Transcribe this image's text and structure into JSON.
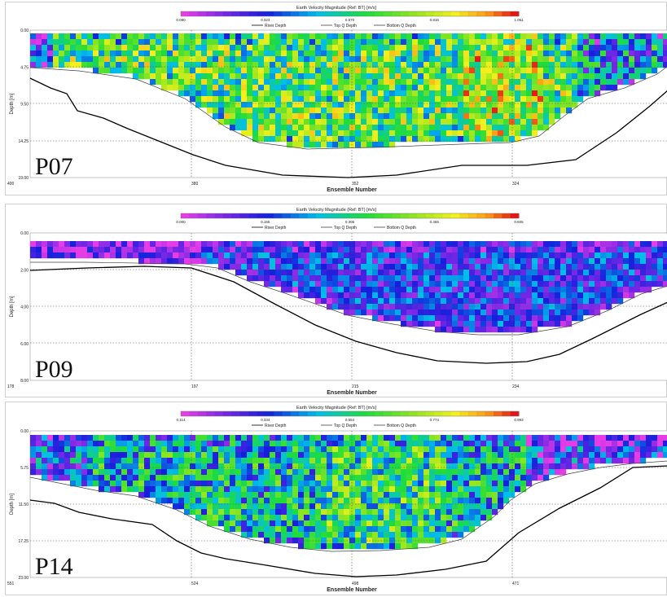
{
  "panels": [
    {
      "id": "P07",
      "panel_label": "P07",
      "legend_title": "Earth Velocity Magnitude (Ref: BT) [m/s]",
      "legend_ticks": [
        "0.080",
        "0.323",
        "0.570",
        "0.816",
        "1.061"
      ],
      "legend_min": 0.08,
      "legend_max": 1.061,
      "colormap": "legacy",
      "y_label": "Depth [m]",
      "y_ticks": [
        "0.00",
        "4.75",
        "9.50",
        "14.25",
        "19.00"
      ],
      "y_max": 19.0,
      "x_label": "Ensemble Number",
      "x_ticks": [
        "400",
        "380",
        "352",
        "324"
      ]
    },
    {
      "id": "P09",
      "panel_label": "P09",
      "legend_title": "Earth Velocity Magnitude (Ref: BT) [m/s]",
      "legend_ticks": [
        "0.000",
        "0.156",
        "0.306",
        "0.455",
        "0.605"
      ],
      "legend_min": 0.0,
      "legend_max": 0.605,
      "colormap": "legacy",
      "y_label": "Depth [m]",
      "y_ticks": [
        "0.00",
        "2.00",
        "4.00",
        "6.00",
        "8.00"
      ],
      "y_max": 8.0,
      "x_label": "Ensemble Number",
      "x_ticks": [
        "178",
        "197",
        "215",
        "234"
      ]
    },
    {
      "id": "P14",
      "panel_label": "P14",
      "legend_title": "Earth Velocity Magnitude (Ref: BT) [m/s]",
      "legend_ticks": [
        "0.114",
        "0.334",
        "0.554",
        "0.774",
        "0.993"
      ],
      "legend_min": 0.114,
      "legend_max": 0.993,
      "colormap": "legacy",
      "y_label": "Depth [m]",
      "y_ticks": [
        "0.00",
        "5.75",
        "11.50",
        "17.25",
        "23.00"
      ],
      "y_max": 23.0,
      "x_label": "Ensemble Number",
      "x_ticks": [
        "551",
        "524",
        "498",
        "471"
      ]
    }
  ],
  "legend_entries": [
    "River Depth",
    "Top Q Depth",
    "Bottom Q Depth"
  ],
  "colors": {
    "river_depth_line": "#000000",
    "q_depth_line": "#444444",
    "grid": "#555555",
    "panel_border": "#d0d0d0"
  },
  "chart_data": [
    {
      "type": "heatmap",
      "title": "Earth Velocity Magnitude (Ref: BT) [m/s]",
      "panel_label": "P07",
      "xlabel": "Ensemble Number",
      "ylabel": "Depth [m]",
      "x_ticks": [
        400,
        380,
        352,
        324
      ],
      "y_ticks": [
        0.0,
        4.75,
        9.5,
        14.25,
        19.0
      ],
      "ylim": [
        19.0,
        0.0
      ],
      "color_range": [
        0.08,
        1.061
      ],
      "legend": [
        "River Depth",
        "Top Q Depth",
        "Bottom Q Depth"
      ],
      "grid": true
    },
    {
      "type": "heatmap",
      "title": "Earth Velocity Magnitude (Ref: BT) [m/s]",
      "panel_label": "P09",
      "xlabel": "Ensemble Number",
      "ylabel": "Depth [m]",
      "x_ticks": [
        178,
        197,
        215,
        234
      ],
      "y_ticks": [
        0.0,
        2.0,
        4.0,
        6.0,
        8.0
      ],
      "ylim": [
        8.0,
        0.0
      ],
      "color_range": [
        0.0,
        0.605
      ],
      "legend": [
        "River Depth",
        "Top Q Depth",
        "Bottom Q Depth"
      ],
      "grid": true
    },
    {
      "type": "heatmap",
      "title": "Earth Velocity Magnitude (Ref: BT) [m/s]",
      "panel_label": "P14",
      "xlabel": "Ensemble Number",
      "ylabel": "Depth [m]",
      "x_ticks": [
        551,
        524,
        498,
        471
      ],
      "y_ticks": [
        0.0,
        5.75,
        11.5,
        17.25,
        23.0
      ],
      "ylim": [
        23.0,
        0.0
      ],
      "color_range": [
        0.114,
        0.993
      ],
      "legend": [
        "River Depth",
        "Top Q Depth",
        "Bottom Q Depth"
      ],
      "grid": true
    }
  ]
}
